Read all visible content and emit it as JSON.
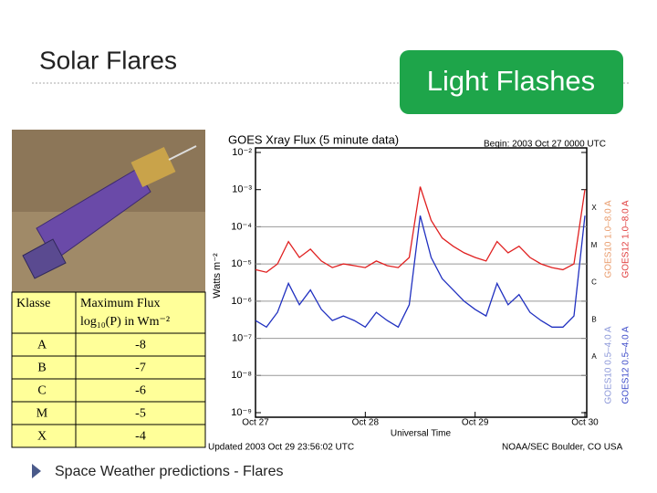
{
  "title": "Solar Flares",
  "button": "Light Flashes",
  "table": {
    "header": [
      "Klasse",
      "Maximum Flux",
      "log₁₀(P) in Wm⁻²"
    ],
    "rows": [
      [
        "A",
        -8
      ],
      [
        "B",
        -7
      ],
      [
        "C",
        -6
      ],
      [
        "M",
        -5
      ],
      [
        "X",
        -4
      ]
    ]
  },
  "bullet": "Space Weather predictions - Flares",
  "chart_data": {
    "type": "line",
    "title": "GOES Xray Flux (5 minute data)",
    "subtitle": "Begin:  2003 Oct 27  0000 UTC",
    "y_label": "Watts m⁻²",
    "x_label": "Universal Time",
    "footer_left": "Updated 2003 Oct 29 23:56:02 UTC",
    "footer_right": "NOAA/SEC Boulder, CO USA",
    "log_scale": true,
    "ylim": [
      1e-09,
      0.01
    ],
    "yticks": [
      {
        "value": 0.01,
        "label": "10⁻²"
      },
      {
        "value": 0.001,
        "label": "10⁻³"
      },
      {
        "value": 0.0001,
        "label": "10⁻⁴"
      },
      {
        "value": 1e-05,
        "label": "10⁻⁵"
      },
      {
        "value": 1e-06,
        "label": "10⁻⁶"
      },
      {
        "value": 1e-07,
        "label": "10⁻⁷"
      },
      {
        "value": 1e-08,
        "label": "10⁻⁸"
      },
      {
        "value": 1e-09,
        "label": "10⁻⁹"
      }
    ],
    "xlim": [
      0,
      3
    ],
    "xticks": [
      {
        "value": 0,
        "label": "Oct 27"
      },
      {
        "value": 1,
        "label": "Oct 28"
      },
      {
        "value": 2,
        "label": "Oct 29"
      },
      {
        "value": 3,
        "label": "Oct 30"
      }
    ],
    "class_levels": [
      {
        "value": 0.0001,
        "label": "X"
      },
      {
        "value": 1e-05,
        "label": "M"
      },
      {
        "value": 1e-06,
        "label": "C"
      },
      {
        "value": 1e-07,
        "label": "B"
      },
      {
        "value": 1e-08,
        "label": "A"
      }
    ],
    "legend_labels": [
      {
        "text": "GOES10 1.0–8.0 A",
        "color": "#e89a6a"
      },
      {
        "text": "GOES10 0.5–4.0 A",
        "color": "#8a96d8"
      },
      {
        "text": "GOES12 1.0–8.0 A",
        "color": "#e03a3a"
      },
      {
        "text": "GOES12 0.5–4.0 A",
        "color": "#3a48c8"
      }
    ],
    "x": [
      0,
      0.1,
      0.2,
      0.3,
      0.4,
      0.5,
      0.6,
      0.7,
      0.8,
      0.9,
      1.0,
      1.1,
      1.2,
      1.3,
      1.4,
      1.5,
      1.6,
      1.7,
      1.8,
      1.9,
      2.0,
      2.1,
      2.2,
      2.3,
      2.4,
      2.5,
      2.6,
      2.7,
      2.8,
      2.9,
      3.0
    ],
    "series": [
      {
        "color": "#e02020",
        "values": [
          7e-06,
          6e-06,
          1e-05,
          4e-05,
          1.5e-05,
          2.5e-05,
          1.2e-05,
          8e-06,
          1e-05,
          9e-06,
          8e-06,
          1.2e-05,
          9e-06,
          8e-06,
          1.5e-05,
          0.0012,
          0.00015,
          5e-05,
          3e-05,
          2e-05,
          1.5e-05,
          1.2e-05,
          4e-05,
          2e-05,
          3e-05,
          1.5e-05,
          1e-05,
          8e-06,
          7e-06,
          1e-05,
          0.001
        ]
      },
      {
        "color": "#2030c0",
        "values": [
          3e-07,
          2e-07,
          5e-07,
          3e-06,
          8e-07,
          2e-06,
          6e-07,
          3e-07,
          4e-07,
          3e-07,
          2e-07,
          5e-07,
          3e-07,
          2e-07,
          8e-07,
          0.0002,
          1.5e-05,
          4e-06,
          2e-06,
          1e-06,
          6e-07,
          4e-07,
          3e-06,
          8e-07,
          1.5e-06,
          5e-07,
          3e-07,
          2e-07,
          2e-07,
          4e-07,
          0.0002
        ]
      }
    ]
  }
}
